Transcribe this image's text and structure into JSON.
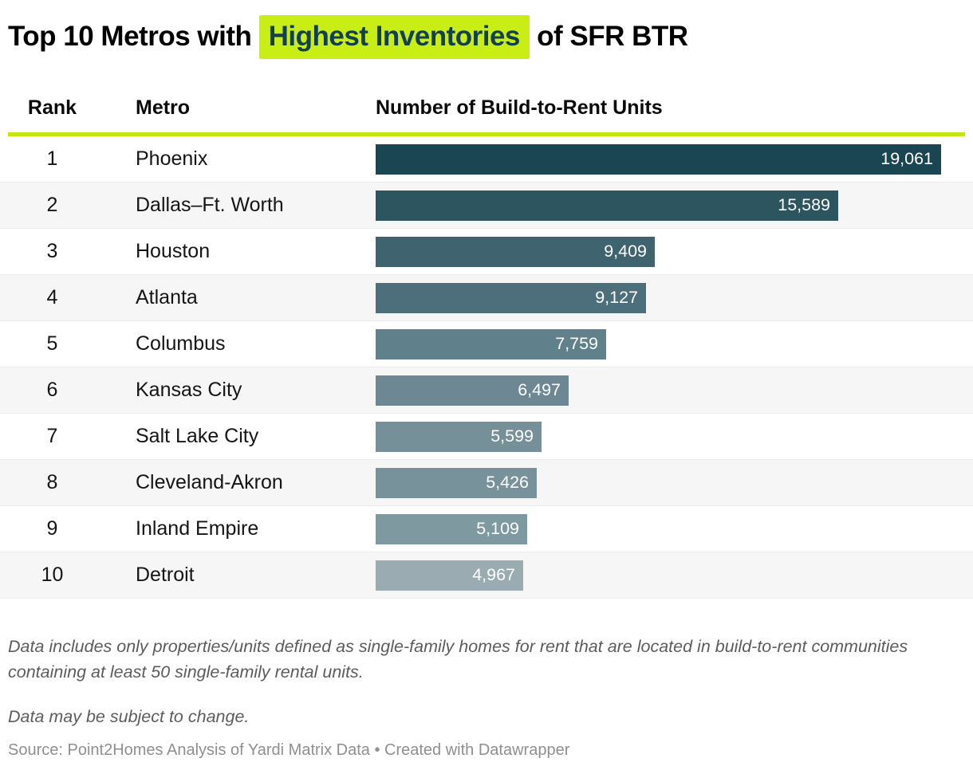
{
  "title": {
    "prefix": "Top 10 Metros with ",
    "highlight": "Highest Inventories",
    "suffix": " of SFR BTR"
  },
  "table_headers": {
    "rank": "Rank",
    "metro": "Metro",
    "units": "Number of Build-to-Rent Units"
  },
  "chart_data": {
    "type": "bar",
    "orientation": "horizontal",
    "title": "Top 10 Metros with Highest Inventories of SFR BTR",
    "xlabel": "Number of Build-to-Rent Units",
    "ylabel": "Metro",
    "xlim": [
      0,
      19900
    ],
    "grid": false,
    "legend": "none",
    "value_format": "comma-thousands",
    "rows": [
      {
        "rank": "1",
        "metro": "Phoenix",
        "value": 19061,
        "label": "19,061",
        "color": "#1a4552"
      },
      {
        "rank": "2",
        "metro": "Dallas–Ft. Worth",
        "value": 15589,
        "label": "15,589",
        "color": "#2c5560"
      },
      {
        "rank": "3",
        "metro": "Houston",
        "value": 9409,
        "label": "9,409",
        "color": "#3f636f"
      },
      {
        "rank": "4",
        "metro": "Atlanta",
        "value": 9127,
        "label": "9,127",
        "color": "#4d6f7b"
      },
      {
        "rank": "5",
        "metro": "Columbus",
        "value": 7759,
        "label": "7,759",
        "color": "#60818b"
      },
      {
        "rank": "6",
        "metro": "Kansas City",
        "value": 6497,
        "label": "6,497",
        "color": "#6d8893"
      },
      {
        "rank": "7",
        "metro": "Salt Lake City",
        "value": 5599,
        "label": "5,599",
        "color": "#76909a"
      },
      {
        "rank": "8",
        "metro": "Cleveland-Akron",
        "value": 5426,
        "label": "5,426",
        "color": "#78929b"
      },
      {
        "rank": "9",
        "metro": "Inland Empire",
        "value": 5109,
        "label": "5,109",
        "color": "#7f99a1"
      },
      {
        "rank": "10",
        "metro": "Detroit",
        "value": 4967,
        "label": "4,967",
        "color": "#9aacb2"
      }
    ]
  },
  "notes": {
    "note1": "Data includes only properties/units defined as single-family homes for rent that are located in build-to-rent communities containing at least 50 single-family rental units.",
    "note2": "Data may be subject to change."
  },
  "source": "Source: Point2Homes Analysis of Yardi Matrix Data • Created with Datawrapper",
  "colors": {
    "highlight_bg": "#c9ee16",
    "highlight_text": "#12404e",
    "divider": "#c4e60f",
    "row_alt_bg": "#f6f6f6",
    "bar_label": "#ffffff"
  }
}
